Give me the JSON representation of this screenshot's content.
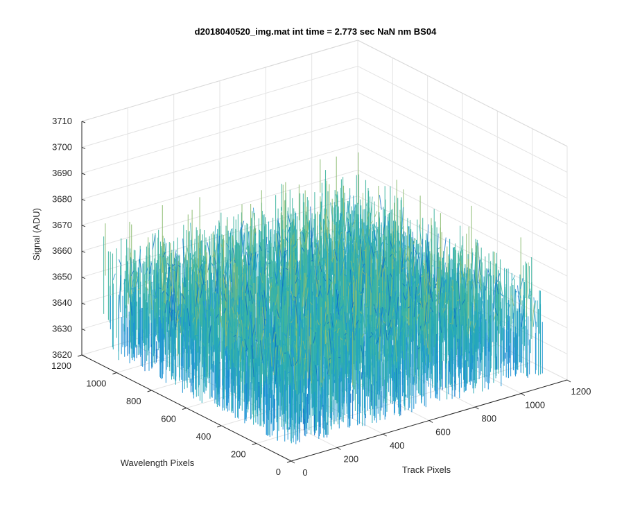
{
  "chart_data": {
    "type": "surface",
    "title": "d2018040520_img.mat int time = 2.773 sec  NaN nm BS04",
    "xlabel": "Track Pixels",
    "ylabel": "Wavelength Pixels",
    "zlabel": "Signal (ADU)",
    "xlim": [
      0,
      1200
    ],
    "ylim": [
      0,
      1200
    ],
    "zlim": [
      3620,
      3710
    ],
    "x_ticks": [
      "0",
      "200",
      "400",
      "600",
      "800",
      "1000",
      "1200"
    ],
    "y_ticks": [
      "0",
      "200",
      "400",
      "600",
      "800",
      "1000",
      "1200"
    ],
    "z_ticks": [
      "3620",
      "3630",
      "3640",
      "3650",
      "3660",
      "3670",
      "3680",
      "3690",
      "3700",
      "3710"
    ],
    "data_extent": {
      "x": [
        0,
        1100
      ],
      "y": [
        0,
        1100
      ]
    },
    "signal_mean": 3652,
    "signal_range": [
      3625,
      3705
    ],
    "colormap": [
      "#0b6fc7",
      "#1e93d4",
      "#25a8b8",
      "#3fb5a0",
      "#8dbd72",
      "#c9bb4d",
      "#f2cc2b"
    ],
    "grid": true,
    "view": {
      "azimuth": -37.5,
      "elevation": 30
    }
  }
}
